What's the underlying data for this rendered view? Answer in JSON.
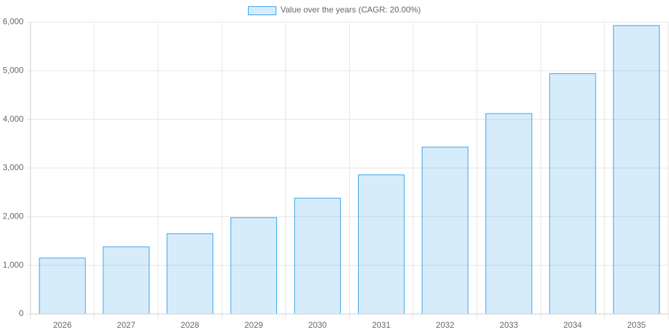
{
  "chart_data": {
    "type": "bar",
    "categories": [
      "2026",
      "2027",
      "2028",
      "2029",
      "2030",
      "2031",
      "2032",
      "2033",
      "2034",
      "2035"
    ],
    "series": [
      {
        "name": "Value over the years (CAGR: 20.00%)",
        "color": "#36a2eb",
        "values": [
          1150,
          1380,
          1650,
          1980,
          2380,
          2860,
          3430,
          4120,
          4940,
          5930
        ]
      }
    ],
    "ylim": [
      0,
      6000
    ],
    "yticks": [
      0,
      {
        "value": 1000,
        "label": "1,000"
      },
      {
        "value": 2000,
        "label": "2,000"
      },
      {
        "value": 3000,
        "label": "3,000"
      },
      {
        "value": 4000,
        "label": "4,000"
      },
      {
        "value": 5000,
        "label": "5,000"
      },
      {
        "value": 6000,
        "label": "6,000"
      }
    ],
    "grid": true
  }
}
